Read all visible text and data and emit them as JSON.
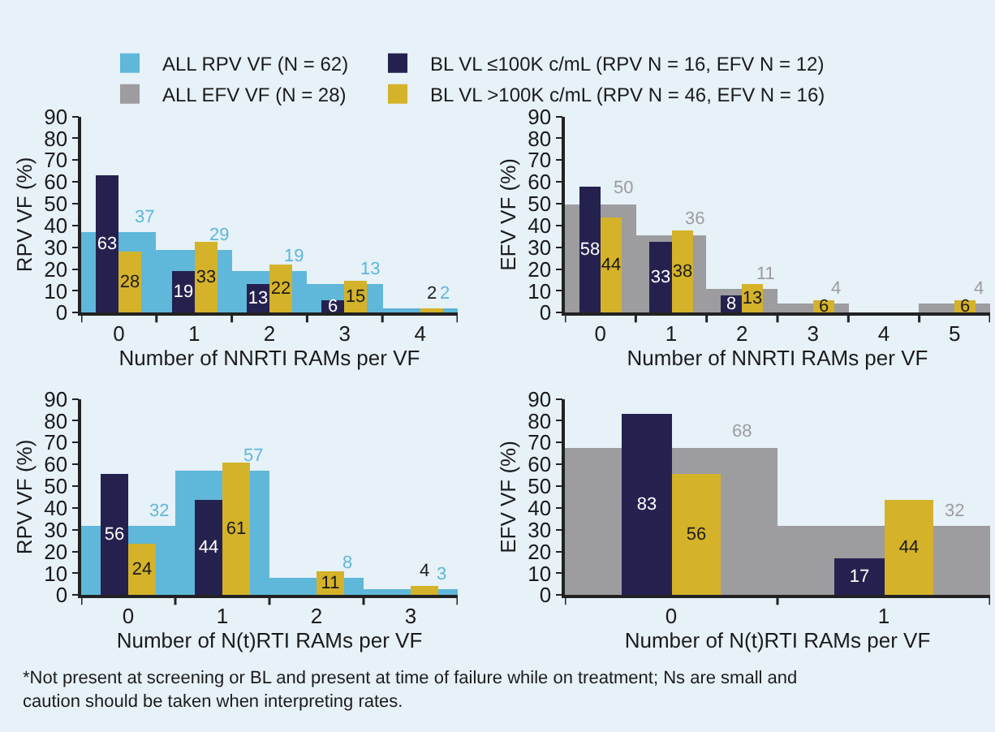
{
  "chart_data": [
    {
      "type": "bar",
      "categories": [
        "0",
        "1",
        "2",
        "3",
        "4"
      ],
      "xlabel": "Number of NNRTI RAMs per VF",
      "ylabel": "RPV VF (%)",
      "ylim": [
        0,
        90
      ],
      "yticks": [
        0,
        10,
        20,
        30,
        40,
        50,
        60,
        70,
        80,
        90
      ],
      "data_labels": true,
      "legend": "top",
      "series": [
        {
          "name": "ALL RPV VF (N = 62)",
          "color": "#5fb7d9",
          "values": [
            37,
            29,
            19,
            13,
            2
          ]
        },
        {
          "name": "BL VL ≤100K c/mL (RPV N = 16, EFV N = 12)",
          "color": "#25214f",
          "values": [
            63,
            19,
            13,
            6,
            null
          ]
        },
        {
          "name": "BL VL >100K c/mL (RPV N = 46, EFV N = 16)",
          "color": "#d4b22a",
          "values": [
            28,
            33,
            22,
            15,
            2
          ]
        }
      ]
    },
    {
      "type": "bar",
      "categories": [
        "0",
        "1",
        "2",
        "3",
        "4",
        "5"
      ],
      "xlabel": "Number of NNRTI RAMs per VF",
      "ylabel": "EFV VF (%)",
      "ylim": [
        0,
        90
      ],
      "yticks": [
        0,
        10,
        20,
        30,
        40,
        50,
        60,
        70,
        80,
        90
      ],
      "data_labels": true,
      "legend": "top",
      "series": [
        {
          "name": "ALL EFV VF (N = 28)",
          "color": "#9d9c9f",
          "values": [
            50,
            36,
            11,
            4,
            null,
            4
          ]
        },
        {
          "name": "BL VL ≤100K c/mL (RPV N = 16, EFV N = 12)",
          "color": "#25214f",
          "values": [
            58,
            33,
            8,
            null,
            null,
            null
          ]
        },
        {
          "name": "BL VL >100K c/mL (RPV N = 46, EFV N = 16)",
          "color": "#d4b22a",
          "values": [
            44,
            38,
            13,
            6,
            null,
            6
          ]
        }
      ]
    },
    {
      "type": "bar",
      "categories": [
        "0",
        "1",
        "2",
        "3"
      ],
      "xlabel": "Number of N(t)RTI RAMs per VF",
      "ylabel": "RPV VF (%)",
      "ylim": [
        0,
        90
      ],
      "yticks": [
        0,
        10,
        20,
        30,
        40,
        50,
        60,
        70,
        80,
        90
      ],
      "data_labels": true,
      "legend": "top",
      "series": [
        {
          "name": "ALL RPV VF (N = 62)",
          "color": "#5fb7d9",
          "values": [
            32,
            57,
            8,
            3
          ]
        },
        {
          "name": "BL VL ≤100K c/mL (RPV N = 16, EFV N = 12)",
          "color": "#25214f",
          "values": [
            56,
            44,
            null,
            null
          ]
        },
        {
          "name": "BL VL >100K c/mL (RPV N = 46, EFV N = 16)",
          "color": "#d4b22a",
          "values": [
            24,
            61,
            11,
            4
          ]
        }
      ]
    },
    {
      "type": "bar",
      "categories": [
        "0",
        "1"
      ],
      "xlabel": "Number of N(t)RTI RAMs per VF",
      "ylabel": "EFV VF (%)",
      "ylim": [
        0,
        90
      ],
      "yticks": [
        0,
        10,
        20,
        30,
        40,
        50,
        60,
        70,
        80,
        90
      ],
      "data_labels": true,
      "legend": "top",
      "annotations": [
        "*Not present at screening or BL and present at time of failure while on treatment; Ns are small and caution should be taken when interpreting rates."
      ],
      "series": [
        {
          "name": "ALL EFV VF (N = 28)",
          "color": "#9d9c9f",
          "values": [
            68,
            32
          ]
        },
        {
          "name": "BL VL ≤100K c/mL (RPV N = 16, EFV N = 12)",
          "color": "#25214f",
          "values": [
            83,
            17
          ]
        },
        {
          "name": "BL VL >100K c/mL (RPV N = 46, EFV N = 16)",
          "color": "#d4b22a",
          "values": [
            56,
            44
          ]
        }
      ]
    }
  ]
}
